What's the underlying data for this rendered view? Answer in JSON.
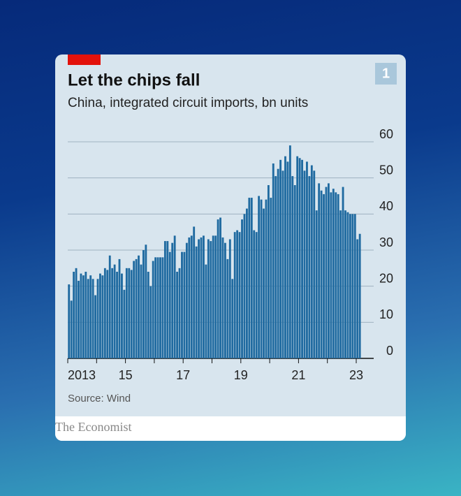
{
  "chart_data": {
    "type": "bar",
    "title": "Let the chips fall",
    "subtitle": "China, integrated circuit imports, bn units",
    "number": "1",
    "source": "Source: Wind",
    "brand": "The Economist",
    "color": "#1f6aa0",
    "categories": [
      "2013",
      null,
      null,
      null,
      null,
      null,
      null,
      null,
      null,
      null,
      null,
      null,
      null,
      null,
      null,
      null,
      null,
      null,
      null,
      null,
      null,
      null,
      null,
      null,
      "15",
      null,
      null,
      null,
      null,
      null,
      null,
      null,
      null,
      null,
      null,
      null,
      null,
      null,
      null,
      null,
      null,
      null,
      null,
      null,
      null,
      null,
      null,
      null,
      "17",
      null,
      null,
      null,
      null,
      null,
      null,
      null,
      null,
      null,
      null,
      null,
      null,
      null,
      null,
      null,
      null,
      null,
      null,
      null,
      null,
      null,
      null,
      null,
      "19",
      null,
      null,
      null,
      null,
      null,
      null,
      null,
      null,
      null,
      null,
      null,
      null,
      null,
      null,
      null,
      null,
      null,
      null,
      null,
      null,
      null,
      null,
      null,
      "21",
      null,
      null,
      null,
      null,
      null,
      null,
      null,
      null,
      null,
      null,
      null,
      null,
      null,
      null,
      null,
      null,
      null,
      null,
      null,
      null,
      null,
      null,
      null,
      "23",
      null
    ],
    "values": [
      20.5,
      16,
      24,
      25,
      21.5,
      23.5,
      23,
      24,
      22,
      23,
      22,
      17.5,
      22,
      23.5,
      23,
      25,
      24.5,
      28.5,
      25,
      26,
      24,
      27.5,
      23.5,
      19,
      25,
      25,
      24.5,
      27,
      27.5,
      28.5,
      26,
      30,
      31.5,
      24,
      20,
      27,
      28,
      28,
      28,
      28,
      32.5,
      32.5,
      29.5,
      32,
      34,
      24,
      25,
      29.5,
      29.5,
      32,
      33.5,
      34,
      36.5,
      31,
      33,
      33.5,
      34,
      26,
      33,
      32.5,
      34,
      34,
      38.5,
      39,
      33.5,
      32,
      27.5,
      33,
      22,
      35,
      35.5,
      35,
      38.5,
      40,
      41.5,
      44.5,
      44.5,
      35.5,
      35,
      45,
      44,
      41.5,
      44,
      48,
      44.5,
      54,
      50.5,
      52.5,
      55,
      52,
      56,
      54.5,
      59,
      50.5,
      48,
      56,
      55.5,
      55,
      52,
      54.5,
      50.5,
      53.5,
      52,
      41,
      48.5,
      46.5,
      45.5,
      47.5,
      48.5,
      46,
      47,
      46,
      45.5,
      41,
      47.5,
      41,
      40.5,
      40,
      40,
      40,
      33,
      34.5
    ],
    "ylim": [
      0,
      60
    ],
    "yticks": [
      0,
      10,
      20,
      30,
      40,
      50,
      60
    ],
    "grid": true
  }
}
